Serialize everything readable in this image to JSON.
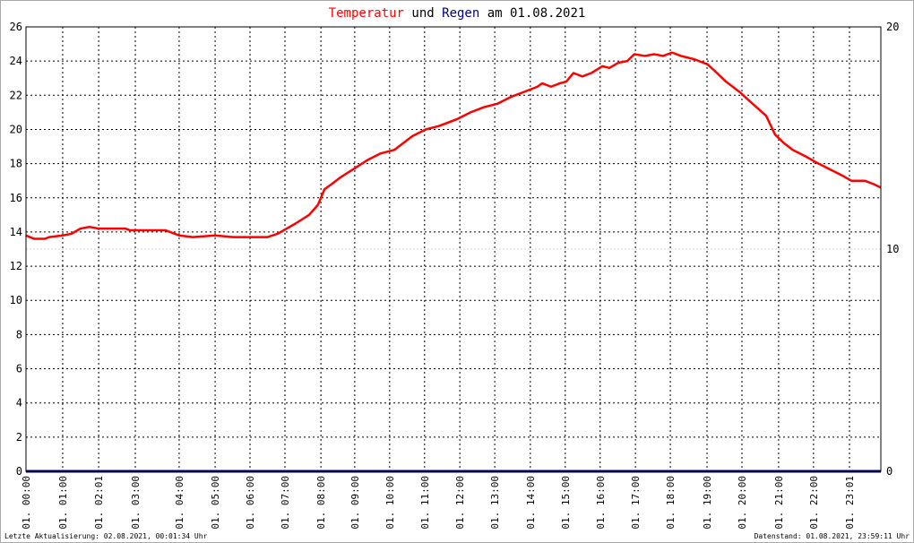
{
  "chart_data": {
    "type": "line",
    "title": [
      {
        "text": "Temperatur",
        "color": "#ff0000"
      },
      {
        "text": "und",
        "color": "#000000"
      },
      {
        "text": "Regen",
        "color": "#000080"
      },
      {
        "text": "am 01.08.2021",
        "color": "#000000"
      }
    ],
    "footer_left": "Letzte Aktualisierung: 02.08.2021, 00:01:34 Uhr",
    "footer_right": "Datenstand: 01.08.2021, 23:59:11 Uhr",
    "xlim": [
      0,
      24
    ],
    "xticks": [
      {
        "value": 0,
        "label": "01. 00:00"
      },
      {
        "value": 1.03,
        "label": "01. 01:00"
      },
      {
        "value": 2.04,
        "label": "01. 02:01"
      },
      {
        "value": 3.07,
        "label": "01. 03:00"
      },
      {
        "value": 4.3,
        "label": "01. 04:00"
      },
      {
        "value": 5.31,
        "label": "01. 05:00"
      },
      {
        "value": 6.29,
        "label": "01. 06:00"
      },
      {
        "value": 7.27,
        "label": "01. 07:00"
      },
      {
        "value": 8.28,
        "label": "01. 08:00"
      },
      {
        "value": 9.23,
        "label": "01. 09:00"
      },
      {
        "value": 10.21,
        "label": "01. 10:00"
      },
      {
        "value": 11.19,
        "label": "01. 11:00"
      },
      {
        "value": 12.18,
        "label": "01. 12:00"
      },
      {
        "value": 13.16,
        "label": "01. 13:00"
      },
      {
        "value": 14.16,
        "label": "01. 14:00"
      },
      {
        "value": 15.14,
        "label": "01. 15:00"
      },
      {
        "value": 16.12,
        "label": "01. 16:00"
      },
      {
        "value": 17.11,
        "label": "01. 17:00"
      },
      {
        "value": 18.09,
        "label": "01. 18:00"
      },
      {
        "value": 19.12,
        "label": "01. 19:00"
      },
      {
        "value": 20.1,
        "label": "01. 20:00"
      },
      {
        "value": 21.13,
        "label": "01. 21:00"
      },
      {
        "value": 22.11,
        "label": "01. 22:00"
      },
      {
        "value": 23.12,
        "label": "01. 23:01"
      }
    ],
    "ylim": [
      0,
      26
    ],
    "yticks": [
      0,
      2,
      4,
      6,
      8,
      10,
      12,
      14,
      16,
      18,
      20,
      22,
      24,
      26
    ],
    "y2lim": [
      0,
      20
    ],
    "y2ticks": [
      0,
      10,
      20
    ],
    "grid": true,
    "series": [
      {
        "name": "Temperatur",
        "color": "#ff0000",
        "x": [
          0,
          0.23,
          0.53,
          0.65,
          1.03,
          1.28,
          1.53,
          1.78,
          2.04,
          2.79,
          2.92,
          3.92,
          4.3,
          4.68,
          5.31,
          5.81,
          6.77,
          7.07,
          7.57,
          7.95,
          8.2,
          8.38,
          8.58,
          8.83,
          9.21,
          9.58,
          9.96,
          10.34,
          10.59,
          10.84,
          11.22,
          11.59,
          12.1,
          12.48,
          12.85,
          13.23,
          13.61,
          13.99,
          14.36,
          14.49,
          14.74,
          14.99,
          15.17,
          15.37,
          15.62,
          15.87,
          16.18,
          16.38,
          16.63,
          16.88,
          17.08,
          17.38,
          17.63,
          17.89,
          18.14,
          18.39,
          18.77,
          19.14,
          19.4,
          19.65,
          20.03,
          20.4,
          20.78,
          21.03,
          21.28,
          21.53,
          21.91,
          22.16,
          22.54,
          22.92,
          23.17,
          23.55,
          23.8,
          24
        ],
        "values": [
          13.8,
          13.6,
          13.6,
          13.7,
          13.8,
          13.9,
          14.2,
          14.3,
          14.2,
          14.2,
          14.1,
          14.1,
          13.8,
          13.7,
          13.8,
          13.7,
          13.7,
          13.9,
          14.5,
          15.0,
          15.6,
          16.5,
          16.8,
          17.2,
          17.7,
          18.2,
          18.6,
          18.8,
          19.2,
          19.6,
          20.0,
          20.2,
          20.6,
          21.0,
          21.3,
          21.5,
          21.9,
          22.2,
          22.5,
          22.7,
          22.5,
          22.7,
          22.8,
          23.3,
          23.1,
          23.3,
          23.7,
          23.6,
          23.9,
          24.0,
          24.4,
          24.3,
          24.4,
          24.3,
          24.5,
          24.3,
          24.1,
          23.8,
          23.3,
          22.8,
          22.2,
          21.5,
          20.8,
          19.7,
          19.2,
          18.8,
          18.4,
          18.1,
          17.7,
          17.3,
          17.0,
          17.0,
          16.8,
          16.6
        ]
      },
      {
        "name": "Regen",
        "color": "#000080",
        "axis": "y2",
        "x": [
          0,
          24
        ],
        "values": [
          0,
          0
        ]
      }
    ]
  }
}
